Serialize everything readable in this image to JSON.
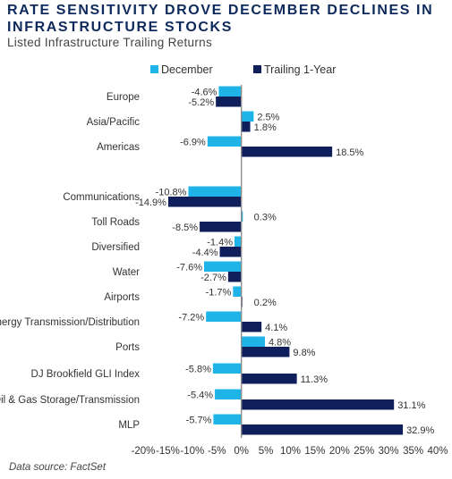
{
  "title": "RATE SENSITIVITY DROVE DECEMBER DECLINES IN INFRASTRUCTURE STOCKS",
  "subtitle": "Listed Infrastructure Trailing Returns",
  "source": "Data source: FactSet",
  "colors": {
    "december": "#1fb4e8",
    "trailing": "#0e1f5c"
  },
  "chart_data": {
    "type": "bar",
    "orientation": "horizontal",
    "categories": [
      "Europe",
      "Asia/Pacific",
      "Americas",
      "Communications",
      "Toll Roads",
      "Diversified",
      "Water",
      "Airports",
      "Energy Transmission/Distribution",
      "Ports",
      "DJ Brookfield GLI Index",
      "Oil & Gas Storage/Transmission",
      "MLP"
    ],
    "series": [
      {
        "name": "December",
        "values": [
          -4.6,
          2.5,
          -6.9,
          -10.8,
          0.3,
          -1.4,
          -7.6,
          -1.7,
          -7.2,
          4.8,
          -5.8,
          -5.4,
          -5.7
        ]
      },
      {
        "name": "Trailing 1-Year",
        "values": [
          -5.2,
          1.8,
          18.5,
          -14.9,
          -8.5,
          -4.4,
          -2.7,
          0.2,
          4.1,
          9.8,
          11.3,
          31.1,
          32.9
        ]
      }
    ],
    "data_labels": [
      [
        "-4.6%",
        "2.5%",
        "-6.9%",
        "-10.8%",
        "0.3%",
        "-1.4%",
        "-7.6%",
        "-1.7%",
        "-7.2%",
        "4.8%",
        "-5.8%",
        "-5.4%",
        "-5.7%"
      ],
      [
        "-5.2%",
        "1.8%",
        "18.5%",
        "-14.9%",
        "-8.5%",
        "-4.4%",
        "-2.7%",
        "0.2%",
        "4.1%",
        "9.8%",
        "11.3%",
        "31.1%",
        "32.9%"
      ]
    ],
    "xlim": [
      -20,
      40
    ],
    "x_ticks": [
      -20,
      -15,
      -10,
      -5,
      0,
      5,
      10,
      15,
      20,
      25,
      30,
      35,
      40
    ],
    "x_tick_labels": [
      "-20%",
      "-15%",
      "-10%",
      "-5%",
      "0%",
      "5%",
      "10%",
      "15%",
      "20%",
      "25%",
      "30%",
      "35%",
      "40%"
    ],
    "legend": "top",
    "grid": false
  }
}
